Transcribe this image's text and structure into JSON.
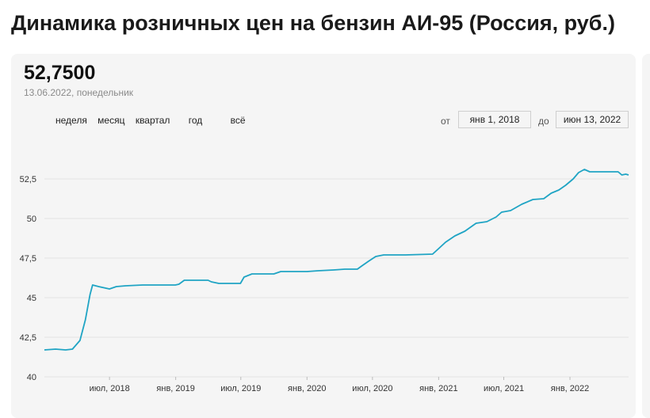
{
  "page": {
    "title": "Динамика розничных цен на бензин АИ-95 (Россия, руб.)"
  },
  "summary": {
    "value": "52,7500",
    "date": "13.06.2022, понедельник"
  },
  "periods": [
    "неделя",
    "месяц",
    "квартал",
    "год",
    "всё"
  ],
  "range": {
    "from_label": "от",
    "from_value": "янв 1, 2018",
    "to_label": "до",
    "to_value": "июн 13, 2022"
  },
  "colors": {
    "line": "#1fa4c4",
    "grid": "#e2e2e2",
    "card": "#f5f5f5"
  },
  "chart_data": {
    "type": "line",
    "title": "",
    "xlabel": "",
    "ylabel": "",
    "ylim": [
      40,
      54
    ],
    "xlim": [
      "2018-01-01",
      "2022-06-13"
    ],
    "yticks": [
      40,
      42.5,
      45,
      47.5,
      50,
      52.5
    ],
    "ytick_labels": [
      "40",
      "42,5",
      "45",
      "47,5",
      "50",
      "52,5"
    ],
    "xticks": [
      "2018-07-01",
      "2019-01-01",
      "2019-07-01",
      "2020-01-01",
      "2020-07-01",
      "2021-01-01",
      "2021-07-01",
      "2022-01-01"
    ],
    "xtick_labels": [
      "июл, 2018",
      "янв, 2019",
      "июл, 2019",
      "янв, 2020",
      "июл, 2020",
      "янв, 2021",
      "июл, 2021",
      "янв, 2022"
    ],
    "grid": true,
    "series": [
      {
        "name": "",
        "points": [
          [
            "2018-01-01",
            41.7
          ],
          [
            "2018-02-01",
            41.75
          ],
          [
            "2018-03-01",
            41.7
          ],
          [
            "2018-03-20",
            41.75
          ],
          [
            "2018-04-10",
            42.3
          ],
          [
            "2018-04-25",
            43.6
          ],
          [
            "2018-05-08",
            45.2
          ],
          [
            "2018-05-15",
            45.8
          ],
          [
            "2018-06-01",
            45.7
          ],
          [
            "2018-07-01",
            45.55
          ],
          [
            "2018-07-20",
            45.7
          ],
          [
            "2018-08-15",
            45.75
          ],
          [
            "2018-10-01",
            45.8
          ],
          [
            "2018-12-31",
            45.8
          ],
          [
            "2019-01-10",
            45.85
          ],
          [
            "2019-01-25",
            46.1
          ],
          [
            "2019-04-01",
            46.1
          ],
          [
            "2019-04-10",
            46.0
          ],
          [
            "2019-05-01",
            45.9
          ],
          [
            "2019-06-30",
            45.9
          ],
          [
            "2019-07-10",
            46.3
          ],
          [
            "2019-08-01",
            46.5
          ],
          [
            "2019-10-01",
            46.5
          ],
          [
            "2019-10-20",
            46.65
          ],
          [
            "2020-01-01",
            46.65
          ],
          [
            "2020-02-01",
            46.7
          ],
          [
            "2020-03-15",
            46.75
          ],
          [
            "2020-04-15",
            46.8
          ],
          [
            "2020-05-20",
            46.8
          ],
          [
            "2020-06-01",
            47.0
          ],
          [
            "2020-06-20",
            47.3
          ],
          [
            "2020-07-10",
            47.6
          ],
          [
            "2020-08-01",
            47.7
          ],
          [
            "2020-10-01",
            47.7
          ],
          [
            "2020-12-15",
            47.75
          ],
          [
            "2021-01-01",
            48.1
          ],
          [
            "2021-01-20",
            48.5
          ],
          [
            "2021-02-15",
            48.9
          ],
          [
            "2021-03-15",
            49.2
          ],
          [
            "2021-04-15",
            49.7
          ],
          [
            "2021-05-15",
            49.8
          ],
          [
            "2021-06-10",
            50.1
          ],
          [
            "2021-06-25",
            50.4
          ],
          [
            "2021-07-20",
            50.5
          ],
          [
            "2021-08-20",
            50.9
          ],
          [
            "2021-09-20",
            51.2
          ],
          [
            "2021-10-20",
            51.25
          ],
          [
            "2021-11-10",
            51.6
          ],
          [
            "2021-12-01",
            51.8
          ],
          [
            "2021-12-20",
            52.1
          ],
          [
            "2022-01-10",
            52.5
          ],
          [
            "2022-01-25",
            52.9
          ],
          [
            "2022-02-10",
            53.1
          ],
          [
            "2022-02-25",
            52.95
          ],
          [
            "2022-04-01",
            52.95
          ],
          [
            "2022-05-15",
            52.95
          ],
          [
            "2022-05-25",
            52.75
          ],
          [
            "2022-06-05",
            52.8
          ],
          [
            "2022-06-13",
            52.75
          ]
        ]
      }
    ]
  }
}
